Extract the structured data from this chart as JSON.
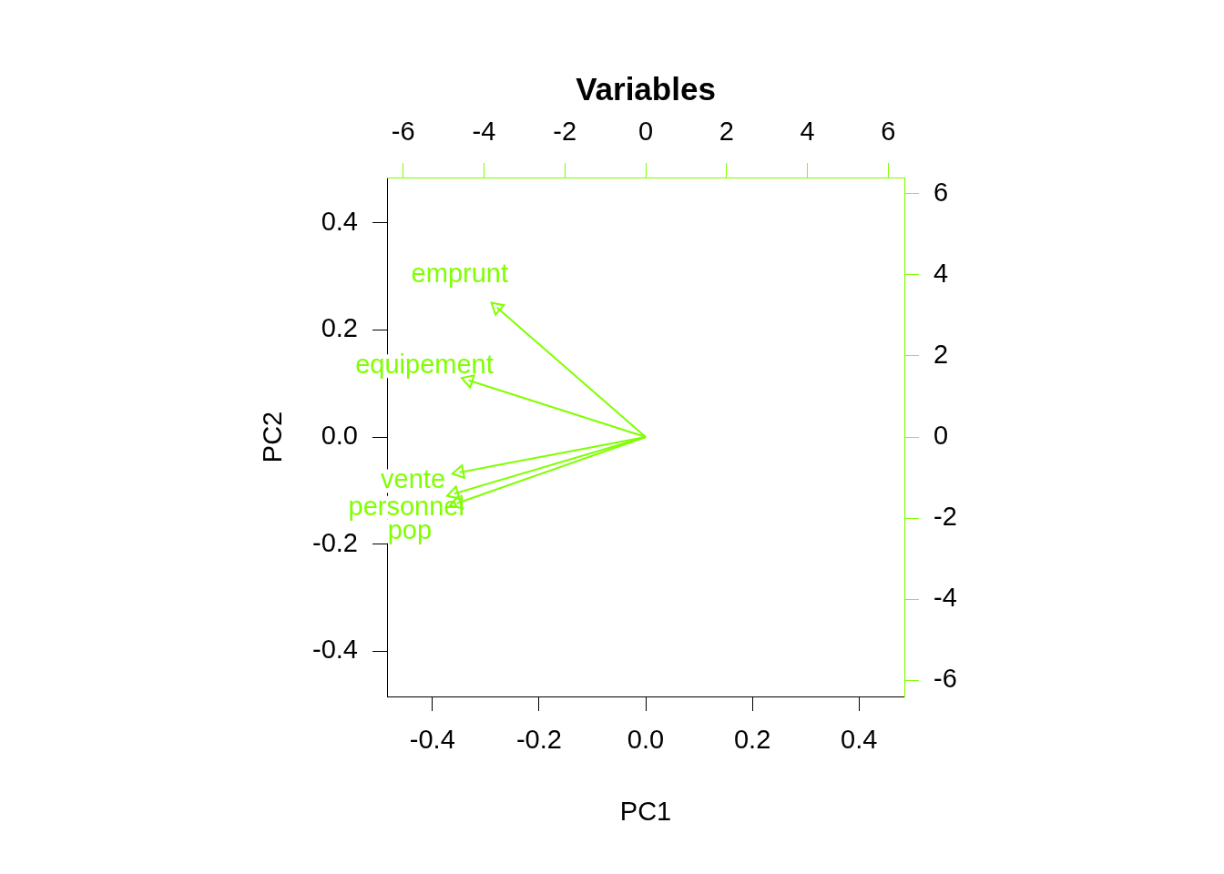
{
  "chart_data": {
    "type": "line",
    "title": "Variables",
    "xlabel": "PC1",
    "ylabel": "PC2",
    "xlim": [
      -0.485,
      0.485
    ],
    "ylim": [
      -0.485,
      0.485
    ],
    "xticks": [
      -0.4,
      -0.2,
      {
        "value": 0,
        "label": "0.0"
      },
      0.2,
      0.4
    ],
    "yticks": [
      -0.4,
      -0.2,
      {
        "value": 0,
        "label": "0.0"
      },
      0.2,
      0.4
    ],
    "x2lim": [
      -6.4,
      6.4
    ],
    "x2ticks": [
      -6,
      -4,
      -2,
      0,
      2,
      4,
      6
    ],
    "y2lim": [
      -6.4,
      6.4
    ],
    "y2ticks": [
      -6,
      -4,
      -2,
      0,
      2,
      4,
      6
    ],
    "marker": "triangle",
    "grid": false,
    "legend": false,
    "series": [
      {
        "name": "emprunt",
        "color": "#7fff00",
        "x": [
          0,
          -0.279
        ],
        "values": [
          0,
          0.242
        ]
      },
      {
        "name": "equipement",
        "color": "#7fff00",
        "x": [
          0,
          -0.332
        ],
        "values": [
          0,
          0.106
        ]
      },
      {
        "name": "vente",
        "color": "#7fff00",
        "x": [
          0,
          -0.349
        ],
        "values": [
          0,
          -0.066
        ]
      },
      {
        "name": "personnel",
        "color": "#7fff00",
        "x": [
          0,
          -0.359
        ],
        "values": [
          0,
          -0.106
        ]
      },
      {
        "name": "pop",
        "color": "#7fff00",
        "x": [
          0,
          -0.354
        ],
        "values": [
          0,
          -0.124
        ]
      }
    ]
  }
}
